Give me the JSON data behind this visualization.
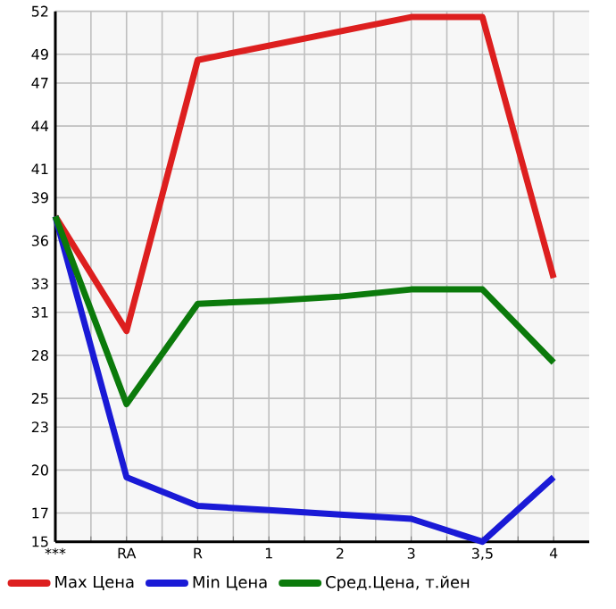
{
  "chart_data": {
    "type": "line",
    "categories": [
      "***",
      "RA",
      "R",
      "1",
      "2",
      "3",
      "3,5",
      "4"
    ],
    "series": [
      {
        "name": "Max Цена",
        "color": "#dd1f1f",
        "values": [
          37.7,
          29.7,
          48.6,
          49.6,
          50.6,
          51.6,
          51.6,
          33.4
        ]
      },
      {
        "name": "Min Цена",
        "color": "#1a1ad6",
        "values": [
          37.7,
          19.5,
          17.5,
          17.2,
          16.9,
          16.6,
          15,
          19.5
        ]
      },
      {
        "name": "Сред.Цена, т.йен",
        "color": "#0b7a0b",
        "values": [
          37.7,
          24.6,
          31.6,
          31.8,
          32.1,
          32.6,
          32.6,
          27.5
        ]
      }
    ],
    "ylim": [
      15,
      52
    ],
    "yticks": [
      15,
      17,
      20,
      23,
      25,
      28,
      31,
      33,
      36,
      39,
      41,
      44,
      47,
      49,
      52
    ],
    "grid": true,
    "legend": "bottom",
    "marker": "none",
    "line_style": "solid"
  }
}
